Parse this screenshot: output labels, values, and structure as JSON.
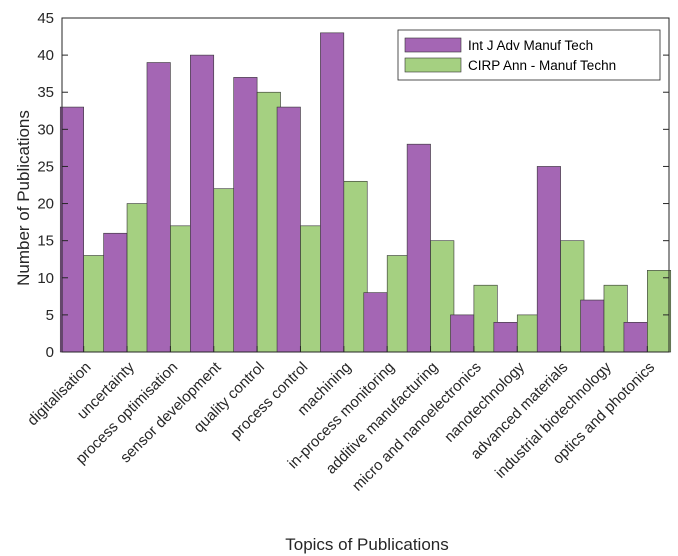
{
  "chart_data": {
    "type": "bar",
    "title": "",
    "xlabel": "Topics of Publications",
    "ylabel": "Number of Publications",
    "ylim": [
      0,
      45
    ],
    "yticks": [
      0,
      5,
      10,
      15,
      20,
      25,
      30,
      35,
      40,
      45
    ],
    "grid": false,
    "legend_position": "top-right",
    "categories": [
      "digitalisation",
      "uncertainty",
      "process optimisation",
      "sensor development",
      "quality control",
      "process control",
      "machining",
      "in-process monitoring",
      "additive manufacturing",
      "micro and nanoelectronics",
      "nanotechnology",
      "advanced materials",
      "industrial biotechnology",
      "optics and photonics"
    ],
    "series": [
      {
        "name": "Int J Adv Manuf Tech",
        "color": "#a466b4",
        "values": [
          33,
          16,
          39,
          40,
          37,
          33,
          43,
          8,
          28,
          5,
          4,
          25,
          7,
          4
        ]
      },
      {
        "name": "CIRP Ann - Manuf Techn",
        "color": "#8fc462",
        "values": [
          13,
          20,
          17,
          22,
          35,
          17,
          23,
          13,
          15,
          9,
          5,
          15,
          9,
          11
        ]
      }
    ]
  }
}
